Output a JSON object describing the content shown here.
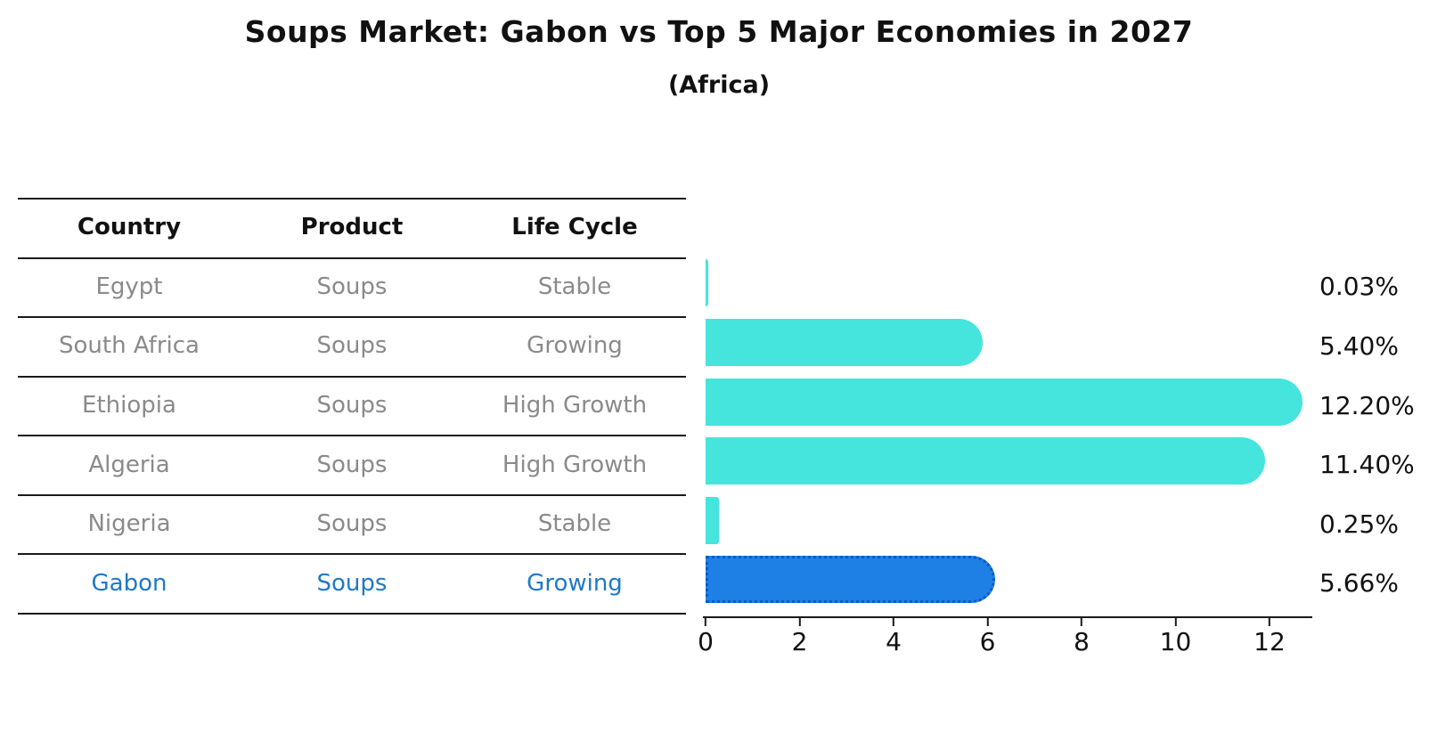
{
  "title": "Soups Market: Gabon vs Top 5 Major Economies in 2027",
  "subtitle": "(Africa)",
  "table": {
    "headers": [
      "Country",
      "Product",
      "Life Cycle"
    ],
    "rows": [
      {
        "country": "Egypt",
        "product": "Soups",
        "life_cycle": "Stable"
      },
      {
        "country": "South Africa",
        "product": "Soups",
        "life_cycle": "Growing"
      },
      {
        "country": "Ethiopia",
        "product": "Soups",
        "life_cycle": "High Growth"
      },
      {
        "country": "Algeria",
        "product": "Soups",
        "life_cycle": "High Growth"
      },
      {
        "country": "Nigeria",
        "product": "Soups",
        "life_cycle": "Stable"
      },
      {
        "country": "Gabon",
        "product": "Soups",
        "life_cycle": "Growing"
      }
    ]
  },
  "chart_data": {
    "type": "bar",
    "orientation": "horizontal",
    "categories": [
      "Egypt",
      "South Africa",
      "Ethiopia",
      "Algeria",
      "Nigeria",
      "Gabon"
    ],
    "values": [
      0.03,
      5.4,
      12.2,
      11.4,
      0.25,
      5.66
    ],
    "value_labels": [
      "0.03%",
      "5.40%",
      "12.20%",
      "11.40%",
      "0.25%",
      "5.66%"
    ],
    "x_ticks": [
      0,
      2,
      4,
      6,
      8,
      10,
      12
    ],
    "xlim": [
      0,
      12.9
    ],
    "grid": "off",
    "legend": "none",
    "value_label_position": "right",
    "bar_color": "#45e4dd",
    "highlight_color": "#1e7fe5",
    "highlight_border_color": "#0a5bc4",
    "highlight_index": 5,
    "highlight_category": "Gabon",
    "title": "Soups Market: Gabon vs Top 5 Major Economies in 2027",
    "subtitle": "(Africa)"
  }
}
